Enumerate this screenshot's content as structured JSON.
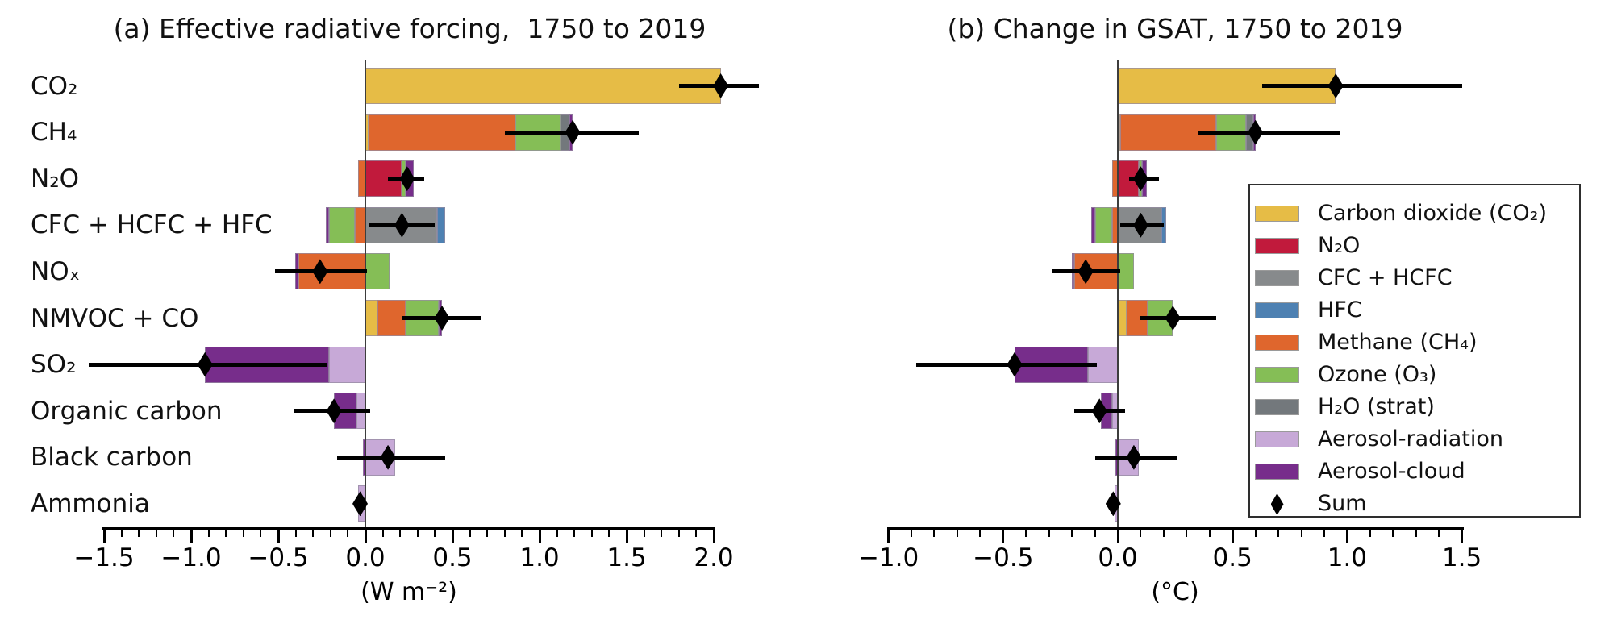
{
  "colors": {
    "co2": "#E6BC46",
    "n2o": "#C11A3C",
    "cfc_hcfc": "#878A8C",
    "hfc": "#4E81B2",
    "ch4": "#DF662D",
    "o3": "#85BE56",
    "h2o_strat": "#73787C",
    "aer_rad": "#C7A9D7",
    "aer_cloud": "#772D8B",
    "sum": "#000000",
    "axis": "#000000",
    "zero_line": "#3d3d3d"
  },
  "legend": {
    "items": [
      {
        "key": "co2",
        "label": "Carbon dioxide (CO₂)"
      },
      {
        "key": "n2o",
        "label": "N₂O"
      },
      {
        "key": "cfc_hcfc",
        "label": "CFC + HCFC"
      },
      {
        "key": "hfc",
        "label": "HFC"
      },
      {
        "key": "ch4",
        "label": "Methane (CH₄)"
      },
      {
        "key": "o3",
        "label": "Ozone (O₃)"
      },
      {
        "key": "h2o_strat",
        "label": "H₂O (strat)"
      },
      {
        "key": "aer_rad",
        "label": "Aerosol-radiation"
      },
      {
        "key": "aer_cloud",
        "label": "Aerosol-cloud"
      },
      {
        "key": "sum",
        "label": "Sum",
        "marker": "diamond"
      }
    ]
  },
  "chart_data": [
    {
      "type": "bar",
      "orientation": "horizontal-stacked",
      "panel": "a",
      "title": "(a) Effective radiative forcing,  1750 to 2019",
      "xlabel": "(W m⁻²)",
      "xlim": [
        -1.5,
        2.0
      ],
      "xticks": [
        -1.5,
        -1.0,
        -0.5,
        0.0,
        0.5,
        1.0,
        1.5,
        2.0
      ],
      "xtick_labels": [
        "−1.5",
        "−1.0",
        "−0.5",
        "0.0",
        "0.5",
        "1.0",
        "1.5",
        "2.0"
      ],
      "minor_tick_step": 0.1,
      "grid": false,
      "legend_position": "none",
      "categories": [
        "CO₂",
        "CH₄",
        "N₂O",
        "CFC + HCFC + HFC",
        "NOₓ",
        "NMVOC + CO",
        "SO₂",
        "Organic carbon",
        "Black carbon",
        "Ammonia"
      ],
      "rows": [
        {
          "label": "CO₂",
          "segments": [
            [
              "co2",
              2.04
            ]
          ],
          "sum": 2.04,
          "ci": [
            1.8,
            2.26
          ]
        },
        {
          "label": "CH₄",
          "segments": [
            [
              "co2",
              0.02
            ],
            [
              "ch4",
              0.84
            ],
            [
              "o3",
              0.26
            ],
            [
              "h2o_strat",
              0.05
            ],
            [
              "aer_cloud",
              0.02
            ]
          ],
          "sum": 1.19,
          "ci": [
            0.8,
            1.57
          ]
        },
        {
          "label": "N₂O",
          "segments": [
            [
              "ch4",
              -0.04
            ],
            [
              "n2o",
              0.21
            ],
            [
              "o3",
              0.02
            ],
            [
              "aer_cloud",
              0.05
            ]
          ],
          "sum": 0.24,
          "ci": [
            0.13,
            0.34
          ]
        },
        {
          "label": "CFC + HCFC + HFC",
          "segments": [
            [
              "ch4",
              -0.06
            ],
            [
              "o3",
              -0.15
            ],
            [
              "aer_cloud",
              -0.015
            ],
            [
              "cfc_hcfc",
              0.41
            ],
            [
              "hfc",
              0.05
            ]
          ],
          "sum": 0.21,
          "ci": [
            0.02,
            0.4
          ]
        },
        {
          "label": "NOₓ",
          "segments": [
            [
              "ch4",
              -0.385
            ],
            [
              "aer_cloud",
              -0.02
            ],
            [
              "o3",
              0.14
            ]
          ],
          "sum": -0.26,
          "ci": [
            -0.52,
            0.01
          ]
        },
        {
          "label": "NMVOC + CO",
          "segments": [
            [
              "co2",
              0.07
            ],
            [
              "ch4",
              0.16
            ],
            [
              "o3",
              0.19
            ],
            [
              "aer_cloud",
              0.02
            ]
          ],
          "sum": 0.44,
          "ci": [
            0.21,
            0.66
          ]
        },
        {
          "label": "SO₂",
          "segments": [
            [
              "aer_rad",
              -0.21
            ],
            [
              "aer_cloud",
              -0.71
            ]
          ],
          "sum": -0.92,
          "ci": [
            -1.59,
            -0.22
          ]
        },
        {
          "label": "Organic carbon",
          "segments": [
            [
              "aer_rad",
              -0.05
            ],
            [
              "aer_cloud",
              -0.13
            ]
          ],
          "sum": -0.18,
          "ci": [
            -0.41,
            0.03
          ]
        },
        {
          "label": "Black carbon",
          "segments": [
            [
              "aer_cloud",
              -0.015
            ],
            [
              "aer_rad",
              0.17
            ]
          ],
          "sum": 0.13,
          "ci": [
            -0.16,
            0.46
          ]
        },
        {
          "label": "Ammonia",
          "segments": [
            [
              "aer_rad",
              -0.04
            ]
          ],
          "sum": -0.03,
          "ci": [
            -0.05,
            -0.02
          ]
        }
      ]
    },
    {
      "type": "bar",
      "orientation": "horizontal-stacked",
      "panel": "b",
      "title": "(b) Change in GSAT, 1750 to 2019",
      "xlabel": "(°C)",
      "xlim": [
        -1.0,
        1.5
      ],
      "xticks": [
        -1.0,
        -0.5,
        0.0,
        0.5,
        1.0,
        1.5
      ],
      "xtick_labels": [
        "−1.0",
        "−0.5",
        "0.0",
        "0.5",
        "1.0",
        "1.5"
      ],
      "minor_tick_step": 0.1,
      "grid": false,
      "legend_position": "lower right",
      "categories": [
        "CO₂",
        "CH₄",
        "N₂O",
        "CFC + HCFC + HFC",
        "NOₓ",
        "NMVOC + CO",
        "SO₂",
        "Organic carbon",
        "Black carbon",
        "Ammonia"
      ],
      "rows": [
        {
          "label": "CO₂",
          "segments": [
            [
              "co2",
              0.95
            ]
          ],
          "sum": 0.95,
          "ci": [
            0.63,
            1.5
          ]
        },
        {
          "label": "CH₄",
          "segments": [
            [
              "co2",
              0.01
            ],
            [
              "ch4",
              0.42
            ],
            [
              "o3",
              0.13
            ],
            [
              "h2o_strat",
              0.03
            ],
            [
              "aer_cloud",
              0.01
            ]
          ],
          "sum": 0.6,
          "ci": [
            0.35,
            0.97
          ]
        },
        {
          "label": "N₂O",
          "segments": [
            [
              "ch4",
              -0.025
            ],
            [
              "n2o",
              0.09
            ],
            [
              "o3",
              0.015
            ],
            [
              "aer_cloud",
              0.02
            ]
          ],
          "sum": 0.1,
          "ci": [
            0.05,
            0.18
          ]
        },
        {
          "label": "CFC + HCFC + HFC",
          "segments": [
            [
              "ch4",
              -0.025
            ],
            [
              "o3",
              -0.075
            ],
            [
              "aer_cloud",
              -0.015
            ],
            [
              "cfc_hcfc",
              0.19
            ],
            [
              "hfc",
              0.02
            ]
          ],
          "sum": 0.1,
          "ci": [
            0.01,
            0.2
          ]
        },
        {
          "label": "NOₓ",
          "segments": [
            [
              "ch4",
              -0.19
            ],
            [
              "aer_cloud",
              -0.01
            ],
            [
              "o3",
              0.07
            ]
          ],
          "sum": -0.14,
          "ci": [
            -0.29,
            0.01
          ]
        },
        {
          "label": "NMVOC + CO",
          "segments": [
            [
              "co2",
              0.04
            ],
            [
              "ch4",
              0.09
            ],
            [
              "o3",
              0.11
            ]
          ],
          "sum": 0.24,
          "ci": [
            0.1,
            0.43
          ]
        },
        {
          "label": "SO₂",
          "segments": [
            [
              "aer_rad",
              -0.13
            ],
            [
              "aer_cloud",
              -0.32
            ]
          ],
          "sum": -0.45,
          "ci": [
            -0.88,
            -0.09
          ]
        },
        {
          "label": "Organic carbon",
          "segments": [
            [
              "aer_rad",
              -0.025
            ],
            [
              "aer_cloud",
              -0.05
            ]
          ],
          "sum": -0.08,
          "ci": [
            -0.19,
            0.03
          ]
        },
        {
          "label": "Black carbon",
          "segments": [
            [
              "aer_cloud",
              -0.01
            ],
            [
              "aer_rad",
              0.09
            ]
          ],
          "sum": 0.07,
          "ci": [
            -0.1,
            0.26
          ]
        },
        {
          "label": "Ammonia",
          "segments": [
            [
              "aer_rad",
              -0.015
            ]
          ],
          "sum": -0.02,
          "ci": [
            -0.03,
            -0.01
          ]
        }
      ]
    }
  ]
}
